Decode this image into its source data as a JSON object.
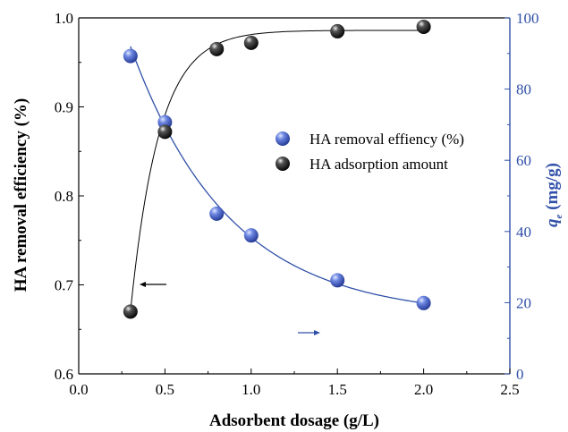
{
  "chart_data": {
    "type": "scatter",
    "x_axis": {
      "label": "Adsorbent dosage (g/L)",
      "range": [
        0.0,
        2.5
      ],
      "ticks": [
        "0.0",
        "0.5",
        "1.0",
        "1.5",
        "2.0",
        "2.5"
      ]
    },
    "y_left": {
      "label": "HA removal  efficiency (%)",
      "range": [
        0.6,
        1.0
      ],
      "ticks": [
        "0.6",
        "0.7",
        "0.8",
        "0.9",
        "1.0"
      ],
      "color": "#000000"
    },
    "y_right": {
      "label_symbol": "q",
      "label_subscript": "e",
      "label_rest": " (mg/g)",
      "range": [
        0,
        100
      ],
      "ticks": [
        "0",
        "20",
        "40",
        "60",
        "80",
        "100"
      ],
      "color": "#3050a8"
    },
    "series": [
      {
        "name": "HA removal effiency (%)",
        "axis": "right",
        "color": "#3a5cc8",
        "line_color": "#3050a8",
        "x": [
          0.3,
          0.5,
          0.8,
          1.0,
          1.5,
          2.0
        ],
        "y": [
          89.3,
          70.7,
          45.0,
          38.9,
          26.3,
          19.9
        ]
      },
      {
        "name": "HA adsorption amount",
        "axis": "left",
        "color": "#111111",
        "line_color": "#000000",
        "x": [
          0.3,
          0.5,
          0.8,
          1.0,
          1.5,
          2.0
        ],
        "y": [
          0.67,
          0.872,
          0.965,
          0.972,
          0.985,
          0.99
        ]
      }
    ],
    "legend_position": "center-right",
    "grid": false
  }
}
